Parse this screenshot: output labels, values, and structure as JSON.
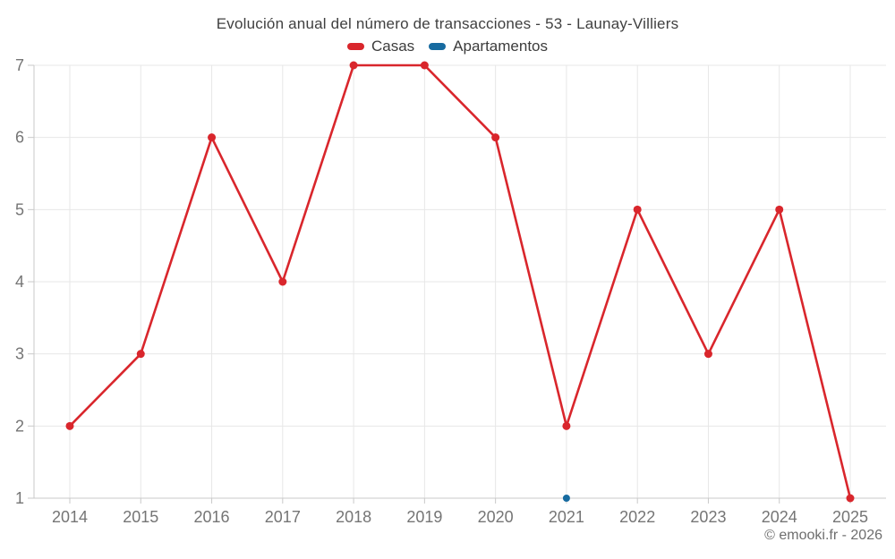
{
  "title": "Evolución anual del número de transacciones - 53 - Launay-Villiers",
  "legend": [
    {
      "label": "Casas",
      "color": "#d9262c"
    },
    {
      "label": "Apartamentos",
      "color": "#176ba0"
    }
  ],
  "footer": "© emooki.fr - 2026",
  "colors": {
    "grid": "#e7e7e7",
    "axis": "#c9c9c9",
    "tick_label": "#757575",
    "background": "#ffffff"
  },
  "chart_data": {
    "type": "line",
    "x": [
      2014,
      2015,
      2016,
      2017,
      2018,
      2019,
      2020,
      2021,
      2022,
      2023,
      2024,
      2025
    ],
    "series": [
      {
        "name": "Casas",
        "color": "#d9262c",
        "marker_radius": 4.5,
        "line_width": 2.6,
        "values": [
          2,
          3,
          6,
          4,
          7,
          7,
          6,
          2,
          5,
          3,
          5,
          1
        ]
      },
      {
        "name": "Apartamentos",
        "color": "#176ba0",
        "marker_radius": 4,
        "line_width": 2.6,
        "values": [
          null,
          null,
          null,
          null,
          null,
          null,
          null,
          1,
          null,
          null,
          null,
          null
        ]
      }
    ],
    "title": "Evolución anual del número de transacciones - 53 - Launay-Villiers",
    "xlabel": "",
    "ylabel": "",
    "ylim": [
      1,
      7
    ],
    "yticks": [
      1,
      2,
      3,
      4,
      5,
      6,
      7
    ],
    "grid": true,
    "legend_position": "top"
  }
}
